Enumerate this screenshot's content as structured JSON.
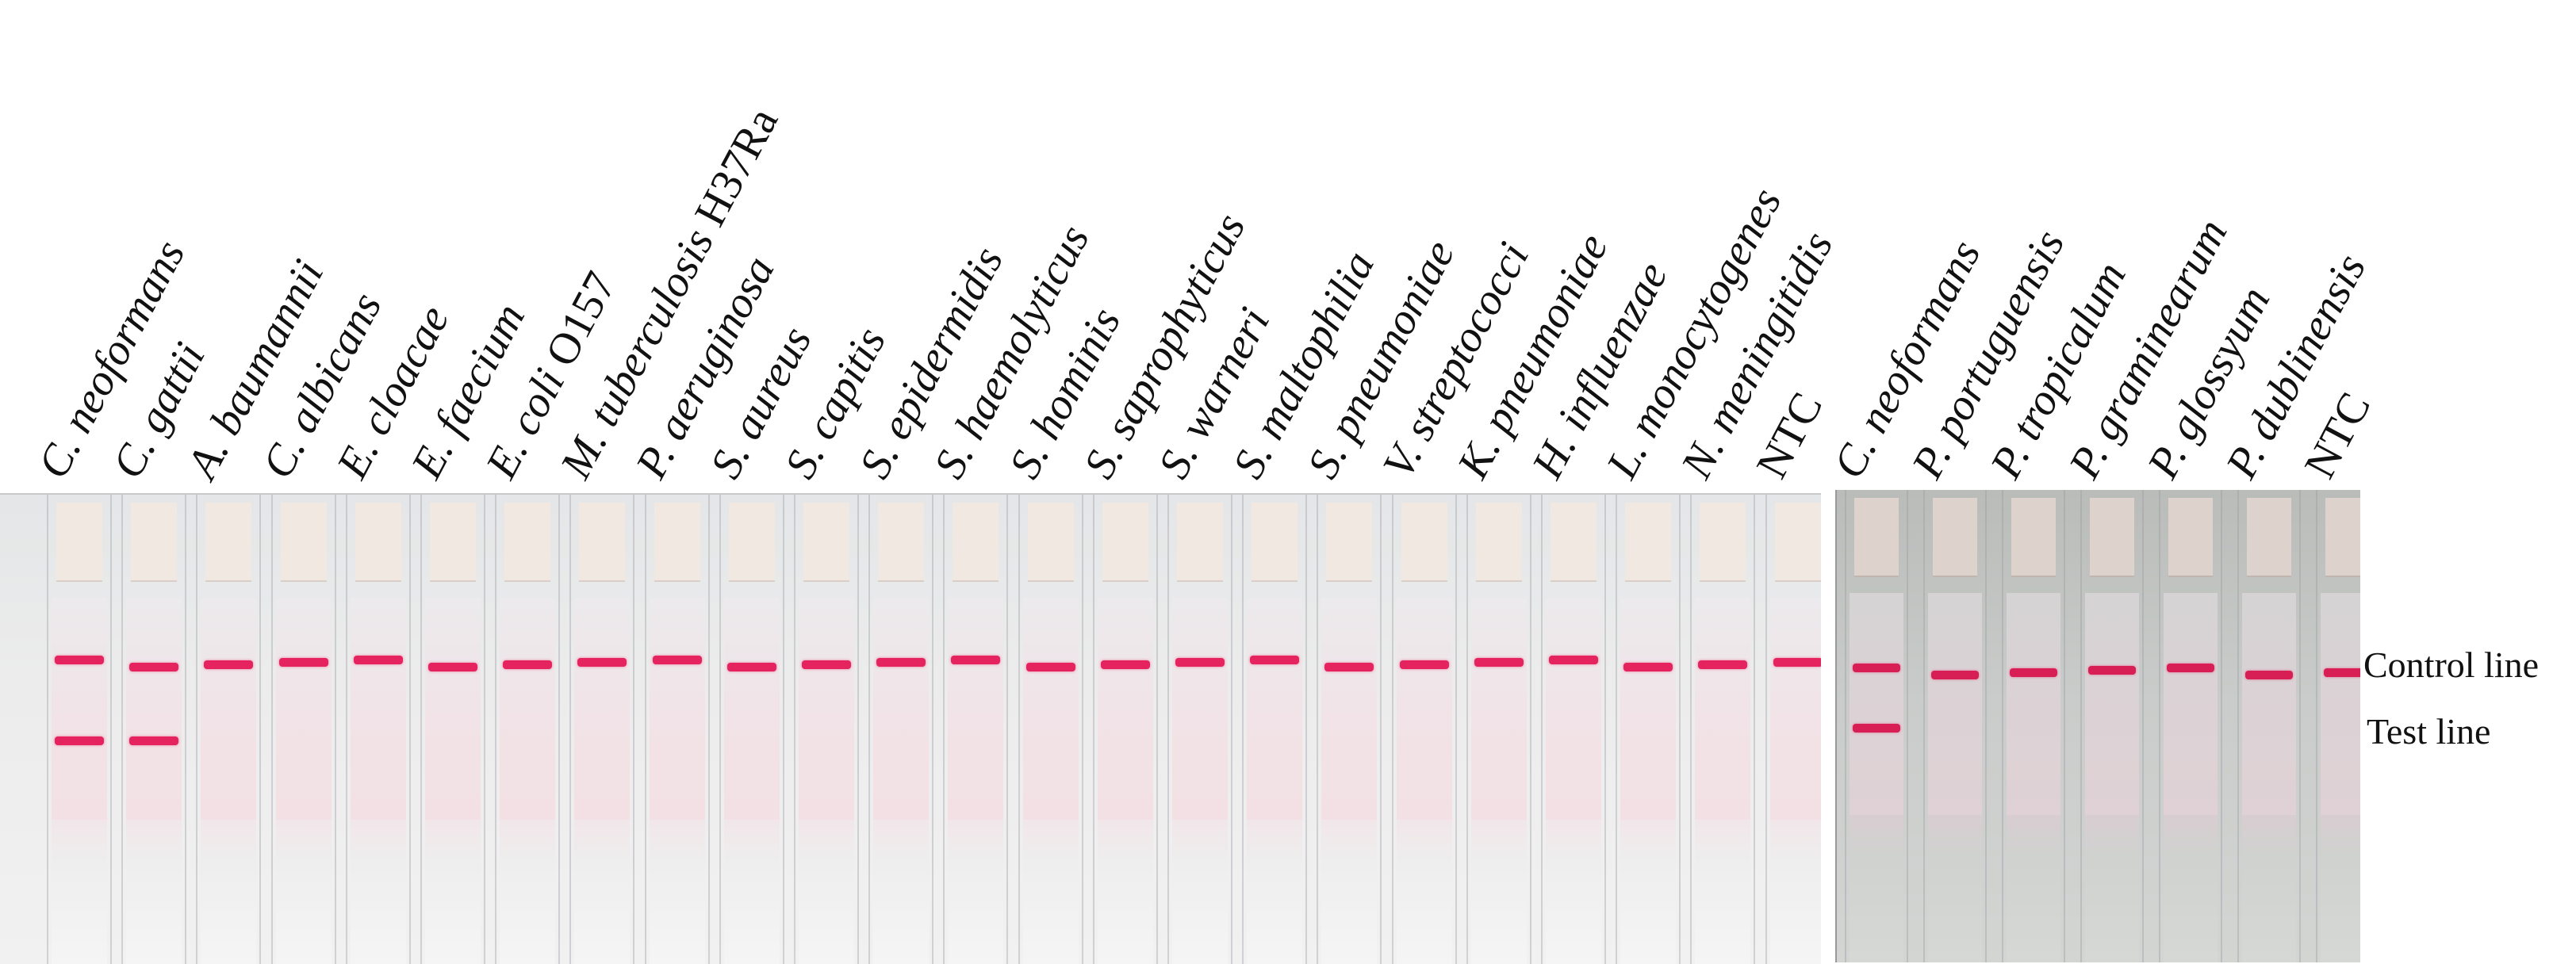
{
  "left_panel": {
    "lanes": [
      {
        "species": "C. neoformans",
        "suffix": "",
        "control_line": true,
        "test_line": true
      },
      {
        "species": "C. gattii",
        "suffix": "",
        "control_line": true,
        "test_line": true
      },
      {
        "species": "A. baumannii",
        "suffix": "",
        "control_line": true,
        "test_line": false
      },
      {
        "species": "C. albicans",
        "suffix": "",
        "control_line": true,
        "test_line": false
      },
      {
        "species": "E. cloacae",
        "suffix": "",
        "control_line": true,
        "test_line": false
      },
      {
        "species": "E. faecium",
        "suffix": "",
        "control_line": true,
        "test_line": false
      },
      {
        "species": "E. coli",
        "suffix": " O157",
        "control_line": true,
        "test_line": false
      },
      {
        "species": "M. tuberculosis",
        "suffix": " H37Ra",
        "control_line": true,
        "test_line": false
      },
      {
        "species": "P. aeruginosa",
        "suffix": "",
        "control_line": true,
        "test_line": false
      },
      {
        "species": "S. aureus",
        "suffix": "",
        "control_line": true,
        "test_line": false
      },
      {
        "species": "S. capitis",
        "suffix": "",
        "control_line": true,
        "test_line": false
      },
      {
        "species": "S. epidermidis",
        "suffix": "",
        "control_line": true,
        "test_line": false
      },
      {
        "species": "S. haemolyticus",
        "suffix": "",
        "control_line": true,
        "test_line": false
      },
      {
        "species": "S. hominis",
        "suffix": "",
        "control_line": true,
        "test_line": false
      },
      {
        "species": "S. saprophyticus",
        "suffix": "",
        "control_line": true,
        "test_line": false
      },
      {
        "species": "S. warneri",
        "suffix": "",
        "control_line": true,
        "test_line": false
      },
      {
        "species": "S. maltophilia",
        "suffix": "",
        "control_line": true,
        "test_line": false
      },
      {
        "species": "S. pneumoniae",
        "suffix": "",
        "control_line": true,
        "test_line": false
      },
      {
        "species": "V. streptococci",
        "suffix": "",
        "control_line": true,
        "test_line": false
      },
      {
        "species": "K. pneumoniae",
        "suffix": "",
        "control_line": true,
        "test_line": false
      },
      {
        "species": "H. influenzae",
        "suffix": "",
        "control_line": true,
        "test_line": false
      },
      {
        "species": "L. monocytogenes",
        "suffix": "",
        "control_line": true,
        "test_line": false
      },
      {
        "species": "N. meningitidis",
        "suffix": "",
        "control_line": true,
        "test_line": false
      },
      {
        "species": "",
        "suffix": "NTC",
        "control_line": true,
        "test_line": false
      }
    ]
  },
  "right_panel": {
    "lanes": [
      {
        "species": "C. neoformans",
        "suffix": "",
        "control_line": true,
        "test_line": true
      },
      {
        "species": "P. portuguensis",
        "suffix": "",
        "control_line": true,
        "test_line": false
      },
      {
        "species": "P. tropicalum",
        "suffix": "",
        "control_line": true,
        "test_line": false
      },
      {
        "species": "P. graminearum",
        "suffix": "",
        "control_line": true,
        "test_line": false
      },
      {
        "species": "P. glossyum",
        "suffix": "",
        "control_line": true,
        "test_line": false
      },
      {
        "species": "P. dublinensis",
        "suffix": "",
        "control_line": true,
        "test_line": false
      },
      {
        "species": "",
        "suffix": "NTC",
        "control_line": true,
        "test_line": false
      }
    ]
  },
  "annotations": {
    "control_line": "Control line",
    "test_line": "Test line"
  },
  "colors": {
    "band": "#e5235e",
    "left_background": "#ececec",
    "right_background": "#c9ccca"
  }
}
